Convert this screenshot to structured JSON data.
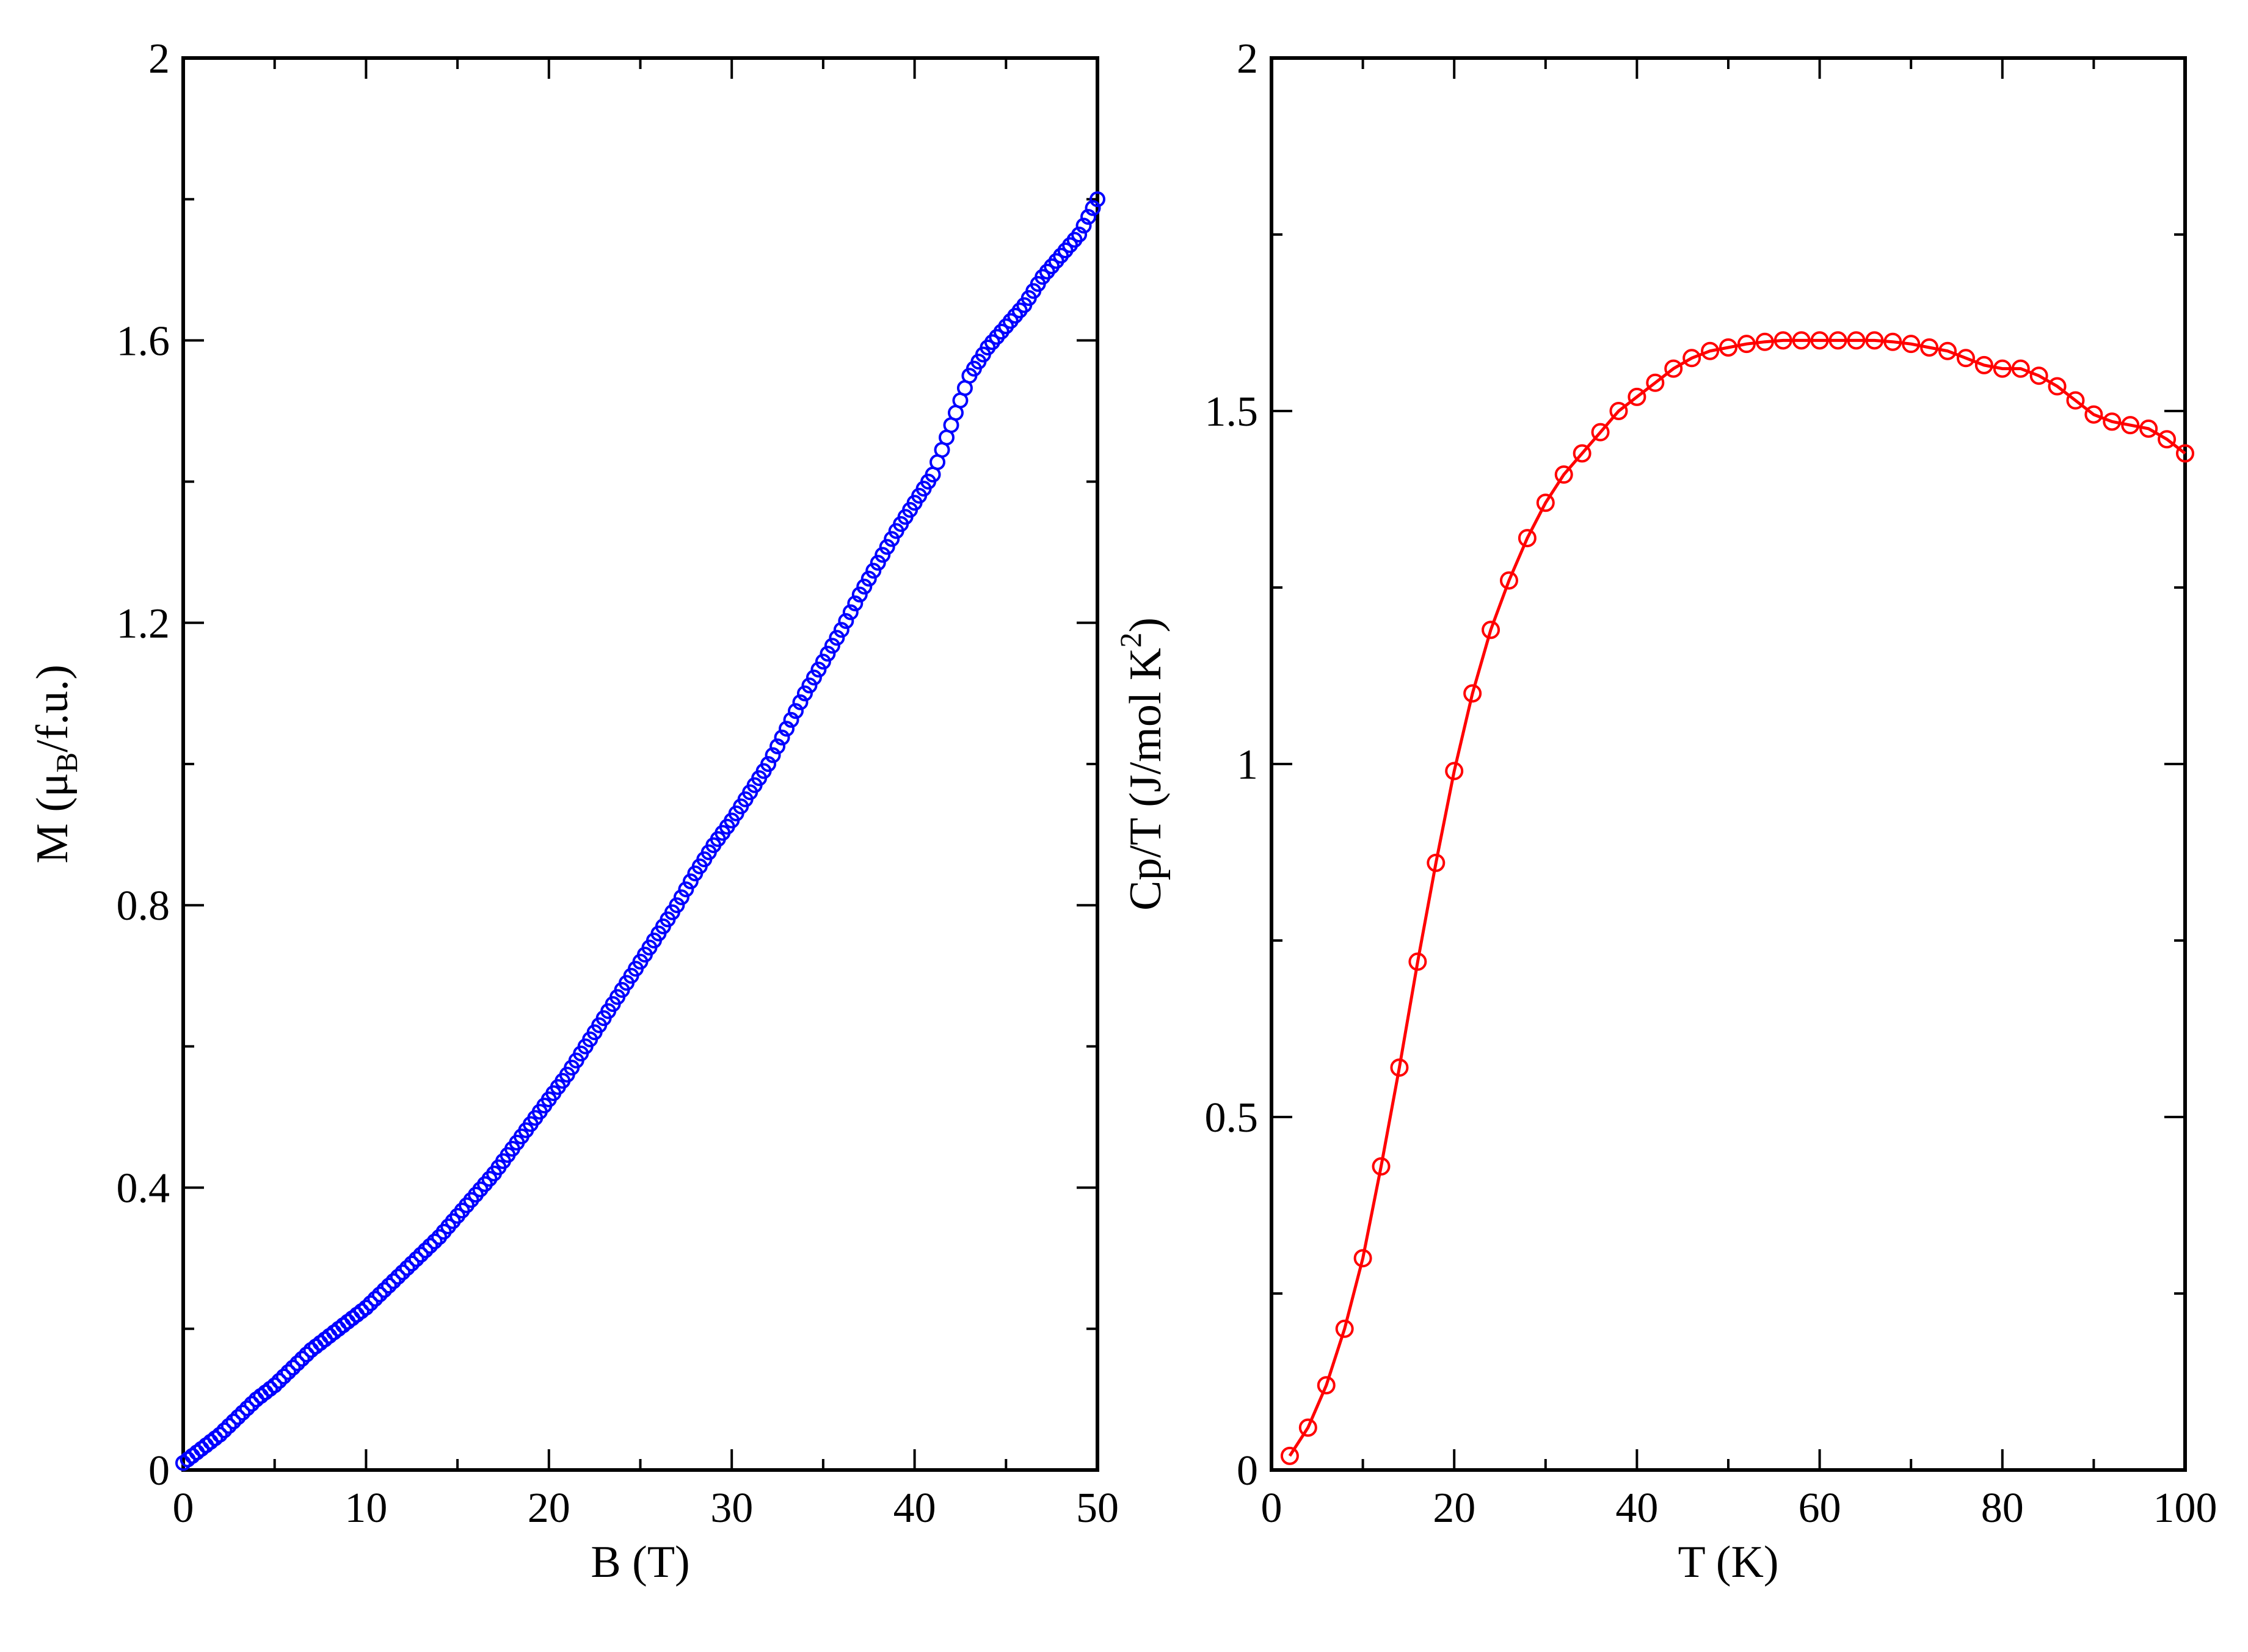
{
  "chart_data": [
    {
      "type": "scatter",
      "xlabel": "B (T)",
      "ylabel": "M (μB/f.u.)",
      "ylabel_parts": {
        "pre": "M (",
        "mu": "μ",
        "sub": "B",
        "post": "/f.u.)"
      },
      "xlim": [
        0,
        50
      ],
      "ylim": [
        0,
        2
      ],
      "x_ticks": [
        "0",
        "10",
        "20",
        "30",
        "40",
        "50"
      ],
      "y_ticks": [
        "0",
        "0.4",
        "0.8",
        "1.2",
        "1.6",
        "2"
      ],
      "grid": false,
      "marker": "open-circle",
      "series": [
        {
          "color": "#0000ff",
          "x": [
            0,
            1,
            2,
            3,
            4,
            5,
            6,
            7,
            8,
            9,
            10,
            11,
            12,
            13,
            14,
            15,
            16,
            17,
            18,
            19,
            20,
            21,
            22,
            23,
            24,
            25,
            26,
            27,
            28,
            29,
            30,
            31,
            32,
            33,
            34,
            35,
            36,
            37,
            38,
            39,
            40,
            41,
            42,
            43,
            44,
            45,
            46,
            47,
            48,
            49,
            50
          ],
          "y": [
            0.01,
            0.03,
            0.05,
            0.075,
            0.1,
            0.12,
            0.145,
            0.17,
            0.19,
            0.21,
            0.23,
            0.255,
            0.28,
            0.305,
            0.33,
            0.36,
            0.39,
            0.42,
            0.455,
            0.49,
            0.525,
            0.56,
            0.6,
            0.64,
            0.68,
            0.72,
            0.76,
            0.8,
            0.845,
            0.885,
            0.92,
            0.96,
            1.0,
            1.05,
            1.1,
            1.145,
            1.19,
            1.24,
            1.285,
            1.33,
            1.37,
            1.41,
            1.48,
            1.55,
            1.59,
            1.62,
            1.65,
            1.69,
            1.72,
            1.75,
            1.8
          ]
        }
      ]
    },
    {
      "type": "line",
      "xlabel": "T (K)",
      "ylabel": "Cp/T (J/mol K2)",
      "ylabel_parts": {
        "pre": "Cp/T (J/mol K",
        "sup": "2",
        "post": ")"
      },
      "xlim": [
        0,
        100
      ],
      "ylim": [
        0,
        2
      ],
      "x_ticks": [
        "0",
        "20",
        "40",
        "60",
        "80",
        "100"
      ],
      "y_ticks": [
        "0",
        "0.5",
        "1",
        "1.5",
        "2"
      ],
      "grid": false,
      "marker": "open-circle",
      "series": [
        {
          "color": "#ff0000",
          "x": [
            2,
            4,
            6,
            8,
            10,
            12,
            14,
            16,
            18,
            20,
            22,
            24,
            26,
            28,
            30,
            32,
            34,
            36,
            38,
            40,
            42,
            44,
            46,
            48,
            50,
            52,
            54,
            56,
            58,
            60,
            62,
            64,
            66,
            68,
            70,
            72,
            74,
            76,
            78,
            80,
            82,
            84,
            86,
            88,
            90,
            92,
            94,
            96,
            98,
            100
          ],
          "y": [
            0.02,
            0.06,
            0.12,
            0.2,
            0.3,
            0.43,
            0.57,
            0.72,
            0.86,
            0.99,
            1.1,
            1.19,
            1.26,
            1.32,
            1.37,
            1.41,
            1.44,
            1.47,
            1.5,
            1.52,
            1.54,
            1.56,
            1.575,
            1.585,
            1.59,
            1.595,
            1.598,
            1.6,
            1.6,
            1.6,
            1.6,
            1.6,
            1.6,
            1.598,
            1.595,
            1.59,
            1.585,
            1.575,
            1.565,
            1.56,
            1.56,
            1.55,
            1.535,
            1.515,
            1.495,
            1.485,
            1.48,
            1.475,
            1.46,
            1.44
          ]
        }
      ]
    }
  ]
}
